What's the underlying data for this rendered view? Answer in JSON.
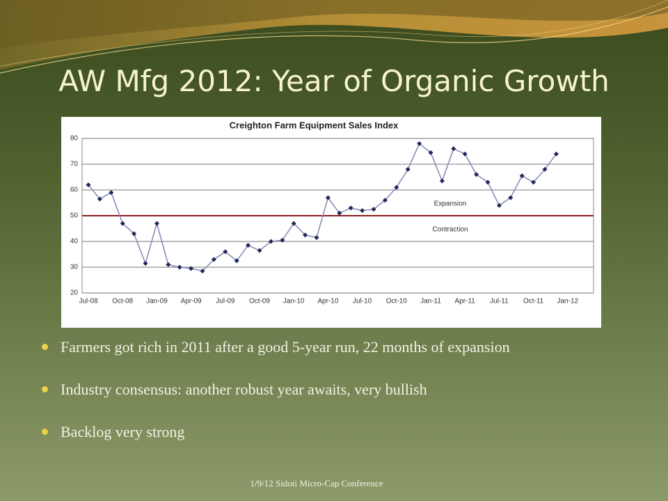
{
  "title": "AW Mfg 2012: Year of Organic Growth",
  "chart_data": {
    "type": "line",
    "title": "Creighton Farm Equipment Sales Index",
    "categories": [
      "Jul-08",
      null,
      null,
      "Oct-08",
      null,
      null,
      "Jan-09",
      null,
      null,
      "Apr-09",
      null,
      null,
      "Jul-09",
      null,
      null,
      "Oct-09",
      null,
      null,
      "Jan-10",
      null,
      null,
      "Apr-10",
      null,
      null,
      "Jul-10",
      null,
      null,
      "Oct-10",
      null,
      null,
      "Jan-11",
      null,
      null,
      "Apr-11",
      null,
      null,
      "Jul-11",
      null,
      null,
      "Oct-11",
      null,
      null,
      "Jan-12"
    ],
    "series": [
      {
        "name": "Sales Index",
        "color": "#8c8cb8",
        "marker_color": "#1f2a5a",
        "values": [
          62,
          56.5,
          59,
          47,
          43,
          31.5,
          47,
          31,
          30,
          29.5,
          28.5,
          33,
          36,
          32.5,
          38.5,
          36.5,
          40,
          40.5,
          47,
          42.5,
          41.5,
          57,
          51,
          53,
          52,
          52.5,
          56,
          61,
          68,
          78,
          74.5,
          63.5,
          76,
          74,
          66,
          63,
          54,
          57,
          65.5,
          63,
          68,
          74,
          null
        ]
      }
    ],
    "reference_line": {
      "value": 50,
      "color": "#8b1a1a"
    },
    "annotations": [
      "Expansion",
      "Contraction"
    ],
    "ylim": [
      20,
      80
    ],
    "yticks": [
      20,
      30,
      40,
      50,
      60,
      70,
      80
    ],
    "grid": true
  },
  "bullets": [
    "Farmers got rich in 2011 after a good 5-year run, 22 months of expansion",
    "Industry consensus:  another robust year awaits, very bullish",
    "Backlog very strong"
  ],
  "footer": "1/9/12 Sidoti Micro-Cap Conference"
}
